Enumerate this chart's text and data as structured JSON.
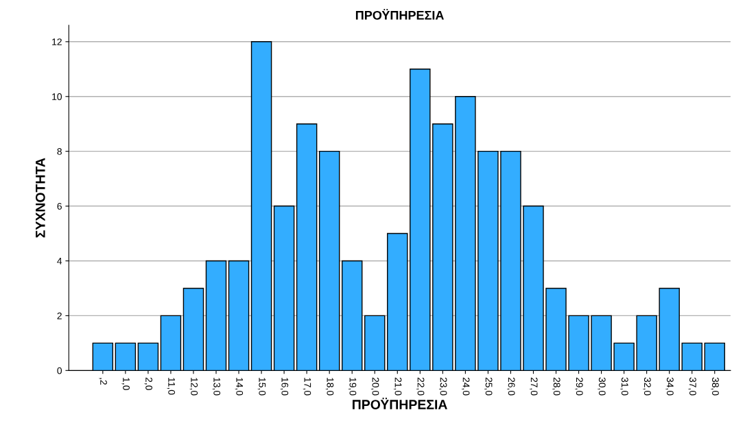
{
  "chart_data": {
    "type": "bar",
    "title": "ΠΡΟΫΠΗΡΕΣΙΑ",
    "xlabel": "ΠΡΟΫΠΗΡΕΣΙΑ",
    "ylabel": "ΣΥΧΝΟΤΗΤΑ",
    "categories": [
      ",2",
      "1,0",
      "2,0",
      "11,0",
      "12,0",
      "13,0",
      "14,0",
      "15,0",
      "16,0",
      "17,0",
      "18,0",
      "19,0",
      "20,0",
      "21,0",
      "22,0",
      "23,0",
      "24,0",
      "25,0",
      "26,0",
      "27,0",
      "28,0",
      "29,0",
      "30,0",
      "31,0",
      "32,0",
      "34,0",
      "37,0",
      "38,0"
    ],
    "values": [
      1,
      1,
      1,
      2,
      3,
      4,
      4,
      12,
      6,
      9,
      8,
      4,
      2,
      5,
      11,
      9,
      10,
      8,
      8,
      6,
      3,
      2,
      2,
      1,
      2,
      3,
      1,
      1
    ],
    "color": "#33adff",
    "ylim": [
      0,
      12.6
    ],
    "yticks": [
      0,
      2,
      4,
      6,
      8,
      10,
      12
    ],
    "grid": "y"
  }
}
